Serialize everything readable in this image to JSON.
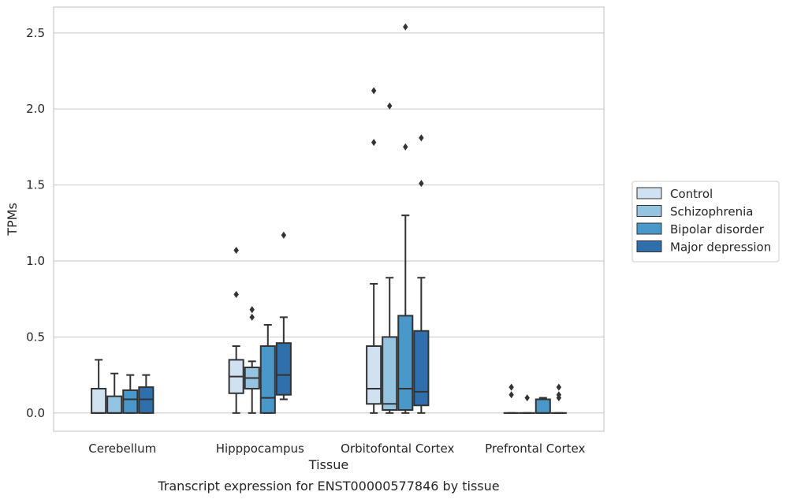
{
  "chart_data": {
    "type": "boxplot",
    "caption": "Transcript expression for ENST00000577846 by tissue",
    "xlabel": "Tissue",
    "ylabel": "TPMs",
    "ylim": [
      -0.12,
      2.67
    ],
    "yticks": [
      0.0,
      0.5,
      1.0,
      1.5,
      2.0,
      2.5
    ],
    "ytick_labels": [
      "0.0",
      "0.5",
      "1.0",
      "1.5",
      "2.0",
      "2.5"
    ],
    "grid": "horizontal",
    "legend_position": "right",
    "categories": [
      "Cerebellum",
      "Hipppocampus",
      "Orbitofontal Cortex",
      "Prefrontal Cortex"
    ],
    "series": [
      {
        "name": "Control",
        "color": "#d0e1f2",
        "boxes": [
          {
            "whisker_low": 0.0,
            "q1": 0.0,
            "median": 0.0,
            "q3": 0.16,
            "whisker_high": 0.35,
            "outliers": []
          },
          {
            "whisker_low": 0.0,
            "q1": 0.13,
            "median": 0.24,
            "q3": 0.35,
            "whisker_high": 0.44,
            "outliers": [
              0.78,
              1.07
            ]
          },
          {
            "whisker_low": 0.0,
            "q1": 0.06,
            "median": 0.16,
            "q3": 0.44,
            "whisker_high": 0.85,
            "outliers": [
              1.78,
              2.12
            ]
          },
          {
            "whisker_low": 0.0,
            "q1": 0.0,
            "median": 0.0,
            "q3": 0.0,
            "whisker_high": 0.0,
            "outliers": [
              0.12,
              0.17
            ]
          }
        ]
      },
      {
        "name": "Schizophrenia",
        "color": "#94c4df",
        "boxes": [
          {
            "whisker_low": 0.0,
            "q1": 0.0,
            "median": 0.0,
            "q3": 0.11,
            "whisker_high": 0.26,
            "outliers": []
          },
          {
            "whisker_low": 0.0,
            "q1": 0.16,
            "median": 0.23,
            "q3": 0.3,
            "whisker_high": 0.34,
            "outliers": [
              0.63,
              0.68
            ]
          },
          {
            "whisker_low": 0.0,
            "q1": 0.02,
            "median": 0.06,
            "q3": 0.5,
            "whisker_high": 0.89,
            "outliers": [
              2.02
            ]
          },
          {
            "whisker_low": 0.0,
            "q1": 0.0,
            "median": 0.0,
            "q3": 0.0,
            "whisker_high": 0.0,
            "outliers": [
              0.1
            ]
          }
        ]
      },
      {
        "name": "Bipolar disorder",
        "color": "#4a98c9",
        "boxes": [
          {
            "whisker_low": 0.0,
            "q1": 0.0,
            "median": 0.09,
            "q3": 0.15,
            "whisker_high": 0.25,
            "outliers": []
          },
          {
            "whisker_low": 0.0,
            "q1": 0.0,
            "median": 0.1,
            "q3": 0.44,
            "whisker_high": 0.58,
            "outliers": []
          },
          {
            "whisker_low": 0.0,
            "q1": 0.02,
            "median": 0.16,
            "q3": 0.64,
            "whisker_high": 1.3,
            "outliers": [
              1.75,
              2.54
            ]
          },
          {
            "whisker_low": 0.0,
            "q1": 0.0,
            "median": 0.0,
            "q3": 0.09,
            "whisker_high": 0.1,
            "outliers": []
          }
        ]
      },
      {
        "name": "Major depression",
        "color": "#2e6fac",
        "boxes": [
          {
            "whisker_low": 0.0,
            "q1": 0.0,
            "median": 0.09,
            "q3": 0.17,
            "whisker_high": 0.25,
            "outliers": []
          },
          {
            "whisker_low": 0.09,
            "q1": 0.12,
            "median": 0.25,
            "q3": 0.46,
            "whisker_high": 0.63,
            "outliers": [
              1.17
            ]
          },
          {
            "whisker_low": 0.0,
            "q1": 0.05,
            "median": 0.14,
            "q3": 0.54,
            "whisker_high": 0.89,
            "outliers": [
              1.51,
              1.81
            ]
          },
          {
            "whisker_low": 0.0,
            "q1": 0.0,
            "median": 0.0,
            "q3": 0.0,
            "whisker_high": 0.0,
            "outliers": [
              0.1,
              0.12,
              0.17
            ]
          }
        ]
      }
    ]
  }
}
